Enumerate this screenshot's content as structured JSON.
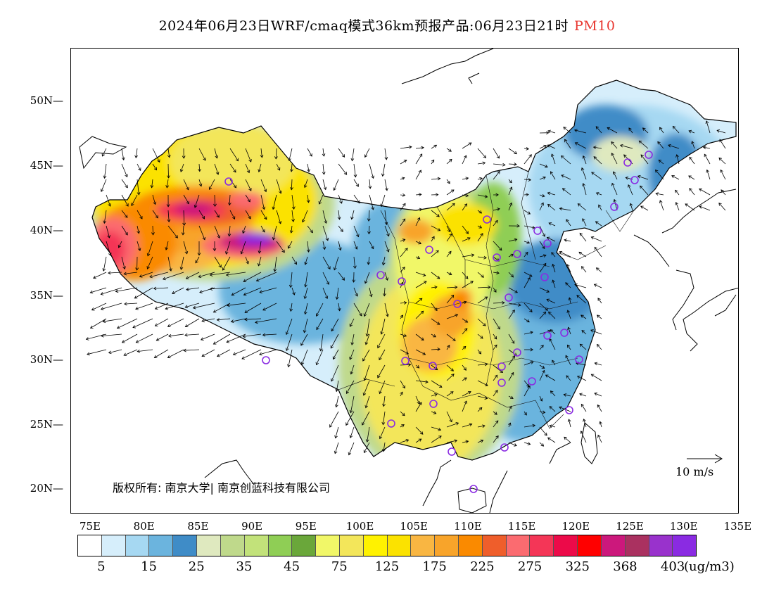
{
  "title": {
    "main": "2024年06月23日WRF/cmaq模式36km预报产品:06月23日21时",
    "pollutant": "PM10",
    "pollutant_color": "#e8362f"
  },
  "map": {
    "lat_labels": [
      "50N",
      "45N",
      "40N",
      "35N",
      "30N",
      "25N",
      "20N"
    ],
    "lon_labels": [
      "75E",
      "80E",
      "85E",
      "90E",
      "95E",
      "100E",
      "105E",
      "110E",
      "115E",
      "120E",
      "125E",
      "130E",
      "135E"
    ],
    "copyright": "版权所有: 南京大学| 南京创蓝科技有限公司",
    "reference_vector_label": "10 m/s",
    "site_marker_color": "#8a2be2"
  },
  "legend": {
    "colors": [
      "#ffffff",
      "#d6eefb",
      "#a6d8f2",
      "#6bb4de",
      "#3f8cc7",
      "#dfe9bf",
      "#bfd98b",
      "#c2e27a",
      "#8fce55",
      "#6aa73a",
      "#f1f768",
      "#f3e65a",
      "#fff200",
      "#fbe200",
      "#f9b642",
      "#f8a42a",
      "#fa8a00",
      "#ef5e2b",
      "#fb6b70",
      "#f43657",
      "#ec0a49",
      "#ff0000",
      "#cc187c",
      "#aa3160",
      "#9932cc",
      "#8a2be2"
    ],
    "labels": [
      "5",
      "15",
      "25",
      "35",
      "45",
      "75",
      "125",
      "175",
      "225",
      "275",
      "325",
      "368",
      "403"
    ],
    "unit": "(ug/m3)"
  }
}
